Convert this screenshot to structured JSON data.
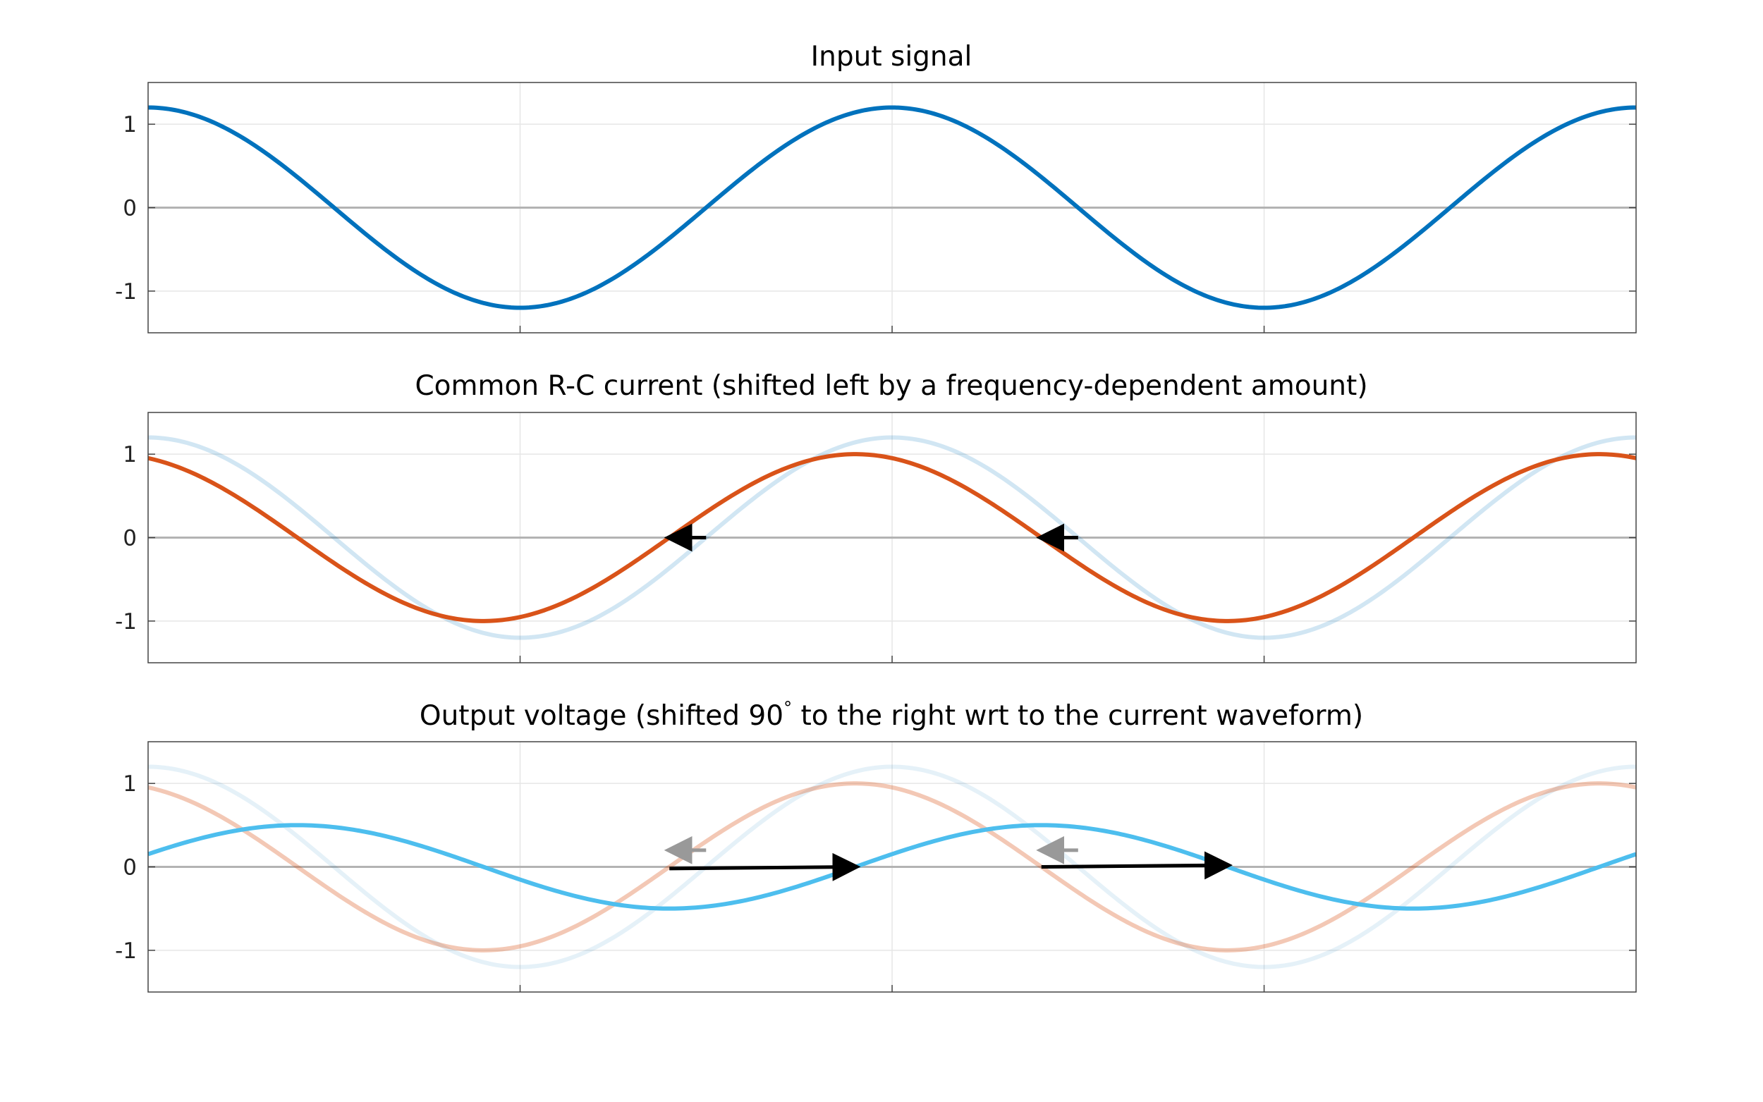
{
  "chart_data": [
    {
      "type": "line",
      "title": "Input signal",
      "xlabel": "",
      "ylabel": "",
      "x_range": [
        0,
        12.566
      ],
      "ylim": [
        -1.5,
        1.5
      ],
      "yticks": [
        1,
        0,
        -1
      ],
      "ytick_labels": [
        "1",
        "0",
        "-1"
      ],
      "xticks": [
        3.1416,
        6.2832,
        9.4248
      ],
      "grid": true,
      "series": [
        {
          "role": "input",
          "color": "#0072BD",
          "opacity": 1.0,
          "amplitude": 1.2,
          "phase_rad": 0,
          "x": [
            0,
            0.7854,
            1.5708,
            2.3562,
            3.1416,
            3.927,
            4.7124,
            5.4978,
            6.2832,
            7.0686,
            7.854,
            8.6394,
            9.4248,
            10.2102,
            10.9956,
            11.781,
            12.566
          ],
          "y": [
            1.2,
            0.849,
            0,
            -0.849,
            -1.2,
            -0.849,
            0,
            0.849,
            1.2,
            0.849,
            0,
            -0.849,
            -1.2,
            -0.849,
            0,
            0.849,
            1.2
          ]
        }
      ],
      "arrows": []
    },
    {
      "type": "line",
      "title": "Common R-C current (shifted left by a frequency-dependent amount)",
      "xlabel": "",
      "ylabel": "",
      "x_range": [
        0,
        12.566
      ],
      "ylim": [
        -1.5,
        1.5
      ],
      "yticks": [
        1,
        0,
        -1
      ],
      "ytick_labels": [
        "1",
        "0",
        "-1"
      ],
      "xticks": [
        3.1416,
        6.2832,
        9.4248
      ],
      "grid": true,
      "series": [
        {
          "role": "input",
          "color": "#0072BD",
          "opacity": 0.18,
          "amplitude": 1.2,
          "phase_rad": 0,
          "x": [
            0,
            1.5708,
            3.1416,
            4.7124,
            6.2832,
            7.854,
            9.4248,
            10.9956,
            12.566
          ],
          "y": [
            1.2,
            0,
            -1.2,
            0,
            1.2,
            0,
            -1.2,
            0,
            1.2
          ]
        },
        {
          "role": "current",
          "color": "#D95319",
          "opacity": 1.0,
          "amplitude": 1.0,
          "phase_rad": 0.31,
          "x": [
            0,
            1.2608,
            2.8316,
            4.4024,
            5.9732,
            7.544,
            9.1148,
            10.6856,
            12.2564,
            12.566
          ],
          "y": [
            0.952,
            0,
            -1.0,
            0,
            1.0,
            0,
            -1.0,
            0,
            1.0,
            0.952
          ]
        }
      ],
      "arrows": [
        {
          "x_from": 4.7124,
          "y_from": 0,
          "x_to": 4.4024,
          "y_to": 0,
          "color": "#000000"
        },
        {
          "x_from": 7.854,
          "y_from": 0,
          "x_to": 7.544,
          "y_to": 0,
          "color": "#000000"
        }
      ]
    },
    {
      "type": "line",
      "title_before": "Output voltage (shifted 90",
      "title_superscript": "°",
      "title_after": " to the right wrt to the current waveform)",
      "xlabel": "",
      "ylabel": "",
      "x_range": [
        0,
        12.566
      ],
      "ylim": [
        -1.5,
        1.5
      ],
      "yticks": [
        1,
        0,
        -1
      ],
      "ytick_labels": [
        "1",
        "0",
        "-1"
      ],
      "xticks": [
        3.1416,
        6.2832,
        9.4248
      ],
      "grid": true,
      "series": [
        {
          "role": "input",
          "color": "#0072BD",
          "opacity": 0.1,
          "amplitude": 1.2,
          "phase_rad": 0,
          "x": [
            0,
            1.5708,
            3.1416,
            4.7124,
            6.2832,
            7.854,
            9.4248,
            10.9956,
            12.566
          ],
          "y": [
            1.2,
            0,
            -1.2,
            0,
            1.2,
            0,
            -1.2,
            0,
            1.2
          ]
        },
        {
          "role": "current",
          "color": "#D95319",
          "opacity": 0.32,
          "amplitude": 1.0,
          "phase_rad": 0.31,
          "x": [
            0,
            1.2608,
            2.8316,
            4.4024,
            5.9732,
            7.544,
            9.1148,
            10.6856,
            12.2564,
            12.566
          ],
          "y": [
            0.952,
            0,
            -1.0,
            0,
            1.0,
            0,
            -1.0,
            0,
            1.0,
            0.952
          ]
        },
        {
          "role": "output",
          "color": "#4DBEEE",
          "opacity": 1.0,
          "amplitude": 0.5,
          "phase_rad": -1.2608,
          "x": [
            0,
            1.2608,
            2.8316,
            4.4024,
            5.9732,
            7.544,
            9.1148,
            10.6856,
            12.2564,
            12.566
          ],
          "y": [
            0.153,
            0.5,
            0,
            -0.5,
            0,
            0.5,
            0,
            -0.5,
            0,
            0.153
          ]
        }
      ],
      "arrows": [
        {
          "x_from": 4.7124,
          "y_from": 0.2,
          "x_to": 4.4024,
          "y_to": 0.2,
          "color": "#999999"
        },
        {
          "x_from": 7.854,
          "y_from": 0.2,
          "x_to": 7.544,
          "y_to": 0.2,
          "color": "#999999"
        },
        {
          "x_from": 4.4024,
          "y_from": -0.02,
          "x_to": 5.9732,
          "y_to": 0,
          "color": "#000000"
        },
        {
          "x_from": 7.544,
          "y_from": 0,
          "x_to": 9.1148,
          "y_to": 0.02,
          "color": "#000000"
        }
      ]
    }
  ]
}
